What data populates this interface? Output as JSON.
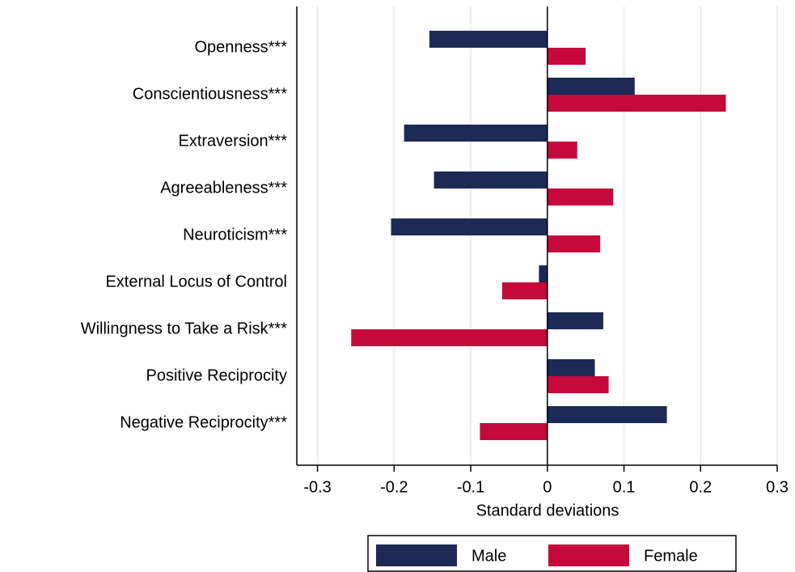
{
  "chart_data": {
    "type": "hbar",
    "x_label": "Standard deviations",
    "categories": [
      "Openness***",
      "Conscientiousness***",
      "Extraversion***",
      "Agreeableness***",
      "Neuroticism***",
      "External Locus of Control",
      "Willingness to Take a Risk***",
      "Positive Reciprocity",
      "Negative Reciprocity***"
    ],
    "series": [
      {
        "name": "Male",
        "color": "#1c2a55",
        "values": [
          -0.154,
          0.114,
          -0.187,
          -0.148,
          -0.204,
          -0.011,
          0.073,
          0.062,
          0.156
        ]
      },
      {
        "name": "Female",
        "color": "#c5093b",
        "values": [
          0.05,
          0.233,
          0.039,
          0.086,
          0.069,
          -0.059,
          -0.256,
          0.08,
          -0.088
        ]
      }
    ],
    "xlim": [
      -0.327,
      0.3
    ],
    "xticks": [
      -0.3,
      -0.2,
      -0.1,
      0,
      0.1,
      0.2,
      0.3
    ],
    "grid": true
  }
}
